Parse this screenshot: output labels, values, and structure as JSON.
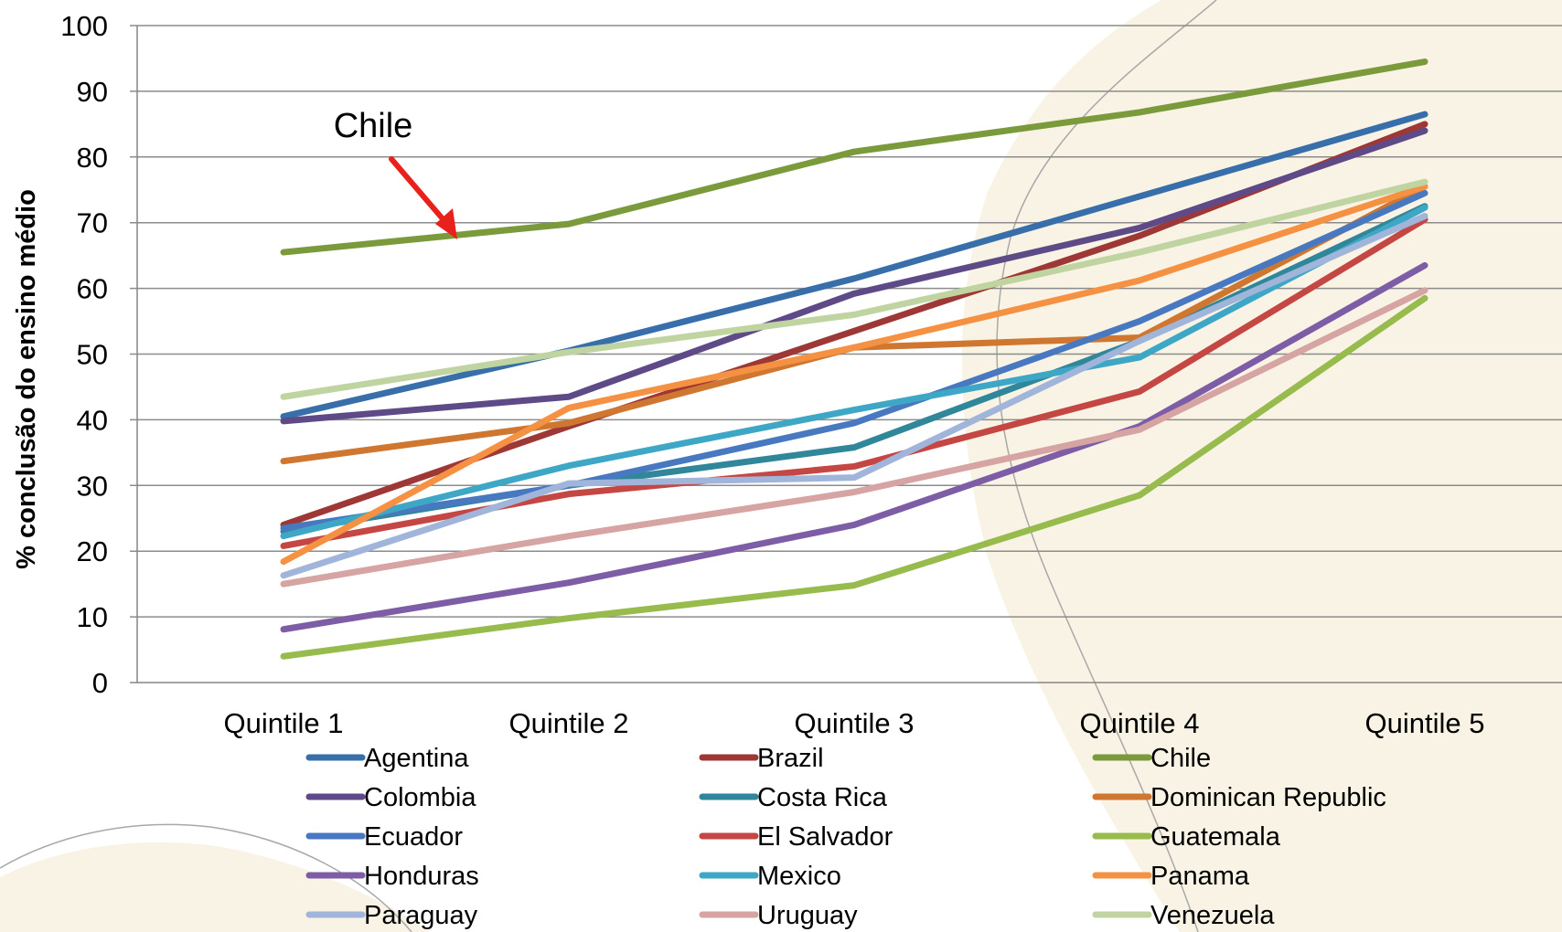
{
  "chart_data": {
    "type": "line",
    "categories": [
      "Quintile 1",
      "Quintile 2",
      "Quintile 3",
      "Quintile 4",
      "Quintile 5"
    ],
    "ylabel": "% conclusão do ensino médio",
    "ylim": [
      0,
      100
    ],
    "yticks": [
      "0",
      "10",
      "20",
      "30",
      "40",
      "50",
      "60",
      "70",
      "80",
      "90",
      "100"
    ],
    "grid": true,
    "legend": "bottom",
    "annotation": {
      "text": "Chile",
      "color": "#e8211c"
    },
    "series": [
      {
        "name": "Agentina",
        "color": "#386eaa",
        "values": [
          40.5,
          50.5,
          61.5,
          74,
          86.5
        ]
      },
      {
        "name": "Brazil",
        "color": "#9e3837",
        "values": [
          24,
          39,
          53.5,
          68,
          85
        ]
      },
      {
        "name": "Chile",
        "color": "#7a9a3c",
        "values": [
          65.5,
          69.8,
          80.8,
          86.8,
          94.5
        ]
      },
      {
        "name": "Colombia",
        "color": "#5f4a88",
        "values": [
          39.8,
          43.5,
          59.2,
          69.2,
          84
        ]
      },
      {
        "name": "Costa Rica",
        "color": "#31879a",
        "values": [
          23,
          30,
          35.8,
          52,
          72.5
        ]
      },
      {
        "name": "Dominican Republic",
        "color": "#cf7731",
        "values": [
          33.7,
          39.5,
          51,
          52.5,
          75.5
        ]
      },
      {
        "name": "Ecuador",
        "color": "#4879c0",
        "values": [
          23.5,
          30,
          39.5,
          55,
          74.5
        ]
      },
      {
        "name": "El Salvador",
        "color": "#c44744",
        "values": [
          20.8,
          28.7,
          32.9,
          44.3,
          70.5
        ]
      },
      {
        "name": "Guatemala",
        "color": "#97bb4d",
        "values": [
          4,
          9.8,
          14.8,
          28.5,
          58.5
        ]
      },
      {
        "name": "Honduras",
        "color": "#7d5ea6",
        "values": [
          8.1,
          15.2,
          24,
          39,
          63.5
        ]
      },
      {
        "name": "Mexico",
        "color": "#3fa7c6",
        "values": [
          22.3,
          33,
          41.5,
          49.5,
          72.3
        ]
      },
      {
        "name": "Panama",
        "color": "#f59143",
        "values": [
          18.4,
          41.8,
          51,
          61.2,
          75.5
        ]
      },
      {
        "name": "Paraguay",
        "color": "#a1b5db",
        "values": [
          16.3,
          30.3,
          31.2,
          52,
          71
        ]
      },
      {
        "name": "Uruguay",
        "color": "#d6a4a2",
        "values": [
          15,
          22.3,
          29,
          38.5,
          59.7
        ]
      },
      {
        "name": "Venezuela",
        "color": "#bfd4a0",
        "values": [
          43.5,
          50.3,
          56,
          65.5,
          76.2
        ]
      }
    ]
  }
}
